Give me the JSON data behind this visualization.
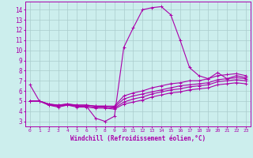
{
  "title": "",
  "xlabel": "Windchill (Refroidissement éolien,°C)",
  "ylabel": "",
  "bg_color": "#cceeed",
  "grid_color": "#aacccc",
  "line_color": "#aa00aa",
  "xlim": [
    -0.5,
    23.5
  ],
  "ylim": [
    2.5,
    14.8
  ],
  "yticks": [
    3,
    4,
    5,
    6,
    7,
    8,
    9,
    10,
    11,
    12,
    13,
    14
  ],
  "xticks": [
    0,
    1,
    2,
    3,
    4,
    5,
    6,
    7,
    8,
    9,
    10,
    11,
    12,
    13,
    14,
    15,
    16,
    17,
    18,
    19,
    20,
    21,
    22,
    23
  ],
  "lines": [
    {
      "x": [
        0,
        1,
        2,
        3,
        4,
        5,
        6,
        7,
        8,
        9,
        10,
        11,
        12,
        13,
        14,
        15,
        16,
        17,
        18,
        19,
        20,
        21,
        22,
        23
      ],
      "y": [
        6.6,
        5.0,
        4.6,
        4.5,
        4.6,
        4.5,
        4.5,
        3.3,
        3.0,
        3.5,
        10.3,
        12.2,
        14.0,
        14.2,
        14.3,
        13.5,
        11.0,
        8.3,
        7.5,
        7.2,
        7.8,
        7.2,
        7.5,
        7.3
      ]
    },
    {
      "x": [
        0,
        1,
        2,
        3,
        4,
        5,
        6,
        7,
        8,
        9,
        10,
        11,
        12,
        13,
        14,
        15,
        16,
        17,
        18,
        19,
        20,
        21,
        22,
        23
      ],
      "y": [
        5.0,
        5.0,
        4.7,
        4.6,
        4.7,
        4.6,
        4.6,
        4.5,
        4.5,
        4.5,
        5.5,
        5.8,
        6.0,
        6.3,
        6.5,
        6.7,
        6.8,
        7.0,
        7.0,
        7.2,
        7.5,
        7.6,
        7.7,
        7.5
      ]
    },
    {
      "x": [
        0,
        1,
        2,
        3,
        4,
        5,
        6,
        7,
        8,
        9,
        10,
        11,
        12,
        13,
        14,
        15,
        16,
        17,
        18,
        19,
        20,
        21,
        22,
        23
      ],
      "y": [
        5.0,
        5.0,
        4.7,
        4.6,
        4.7,
        4.6,
        4.6,
        4.5,
        4.5,
        4.4,
        5.2,
        5.5,
        5.7,
        5.9,
        6.1,
        6.3,
        6.5,
        6.6,
        6.7,
        6.8,
        7.1,
        7.2,
        7.3,
        7.2
      ]
    },
    {
      "x": [
        0,
        1,
        2,
        3,
        4,
        5,
        6,
        7,
        8,
        9,
        10,
        11,
        12,
        13,
        14,
        15,
        16,
        17,
        18,
        19,
        20,
        21,
        22,
        23
      ],
      "y": [
        5.0,
        5.0,
        4.7,
        4.5,
        4.7,
        4.5,
        4.5,
        4.4,
        4.4,
        4.3,
        4.9,
        5.2,
        5.4,
        5.7,
        5.9,
        6.1,
        6.2,
        6.4,
        6.5,
        6.6,
        6.9,
        7.0,
        7.1,
        7.0
      ]
    },
    {
      "x": [
        0,
        1,
        2,
        3,
        4,
        5,
        6,
        7,
        8,
        9,
        10,
        11,
        12,
        13,
        14,
        15,
        16,
        17,
        18,
        19,
        20,
        21,
        22,
        23
      ],
      "y": [
        5.0,
        5.0,
        4.6,
        4.4,
        4.6,
        4.4,
        4.4,
        4.3,
        4.3,
        4.2,
        4.7,
        4.9,
        5.1,
        5.4,
        5.6,
        5.8,
        5.9,
        6.1,
        6.2,
        6.3,
        6.6,
        6.7,
        6.8,
        6.7
      ]
    }
  ]
}
